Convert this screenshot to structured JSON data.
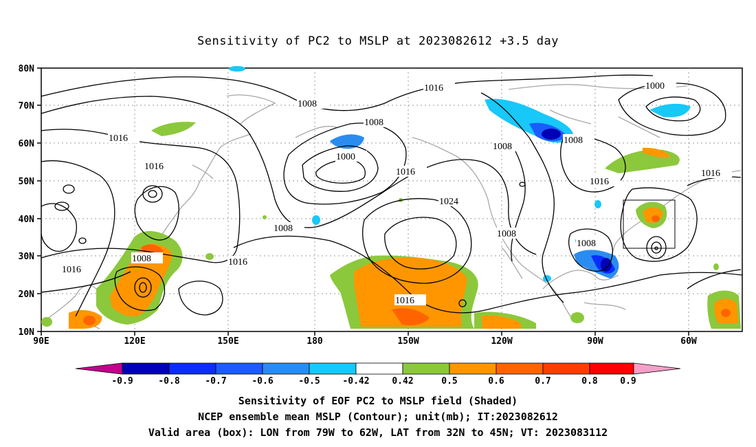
{
  "title": "Sensitivity of PC2 to MSLP at 2023082612 +3.5 day",
  "map": {
    "lat_ticks": [
      "80N",
      "70N",
      "60N",
      "50N",
      "40N",
      "30N",
      "20N",
      "10N"
    ],
    "lon_ticks": [
      "90E",
      "120E",
      "150E",
      "180",
      "150W",
      "120W",
      "90W",
      "60W"
    ],
    "contour_labels": [
      "1008",
      "1016",
      "1008",
      "1016",
      "1000",
      "1008",
      "1016",
      "1024",
      "1008",
      "1008",
      "1016",
      "1008",
      "1016",
      "1016",
      "1008",
      "1016",
      "1000",
      "1008"
    ],
    "box": {
      "lon_from": "79W",
      "lon_to": "62W",
      "lat_from": "32N",
      "lat_to": "45N"
    }
  },
  "colorbar": {
    "labels": [
      "-0.9",
      "-0.8",
      "-0.7",
      "-0.6",
      "-0.5",
      "-0.42",
      "0.42",
      "0.5",
      "0.6",
      "0.7",
      "0.8",
      "0.9"
    ],
    "colors": [
      "#c4008c",
      "#0000b4",
      "#0a2cff",
      "#1a5cff",
      "#2a8cf0",
      "#18c8f8",
      "#ffffff",
      "#8cc83c",
      "#ff9600",
      "#ff6400",
      "#ff3c00",
      "#ff0000",
      "#f4a0c8"
    ]
  },
  "captions": [
    "Sensitivity of EOF PC2 to MSLP field (Shaded)",
    "NCEP ensemble mean MSLP (Contour); unit(mb); IT:2023082612",
    "Valid area (box): LON from 79W to 62W, LAT from 32N to 45N; VT: 2023083112"
  ]
}
